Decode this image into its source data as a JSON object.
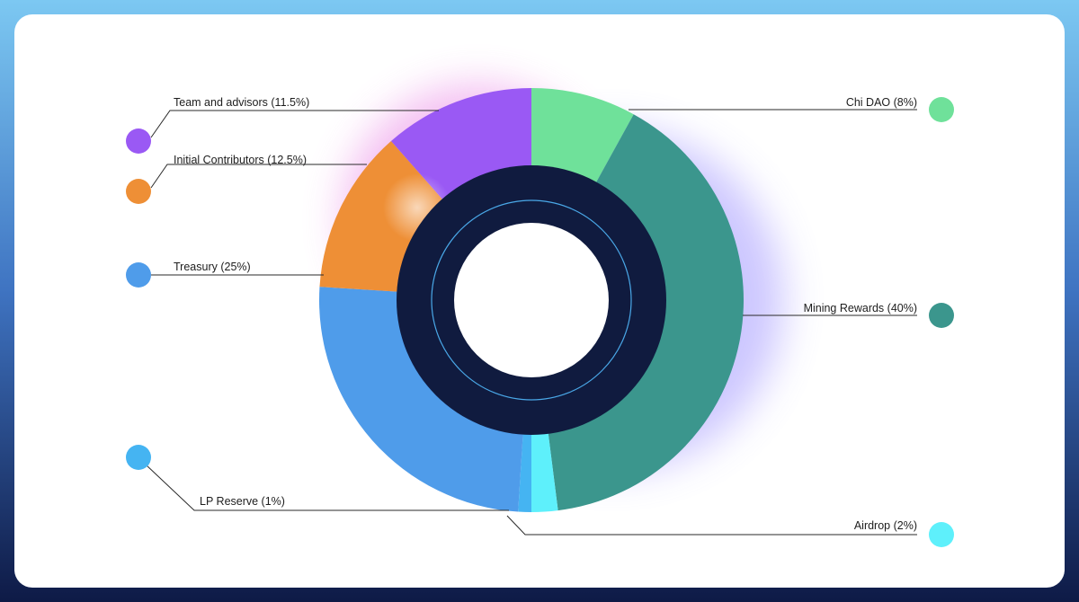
{
  "chart_data": {
    "type": "pie",
    "title": "",
    "series": [
      {
        "label": "Chi DAO (8%)",
        "value": 8,
        "color": "#6fe19a"
      },
      {
        "label": "Mining Rewards (40%)",
        "value": 40,
        "color": "#3b968d"
      },
      {
        "label": "Airdrop (2%)",
        "value": 2,
        "color": "#5ef0fb"
      },
      {
        "label": "LP Reserve (1%)",
        "value": 1,
        "color": "#45b4f2"
      },
      {
        "label": "Treasury (25%)",
        "value": 25,
        "color": "#4f9cea"
      },
      {
        "label": "Initial Contributors (12.5%)",
        "value": 12.5,
        "color": "#ee8f36"
      },
      {
        "label": "Team and advisors (11.5%)",
        "value": 11.5,
        "color": "#9a59f4"
      }
    ],
    "legend": "callouts around the donut",
    "center_color": "#101b3f",
    "ring_line_color": "#4aa8e8"
  }
}
